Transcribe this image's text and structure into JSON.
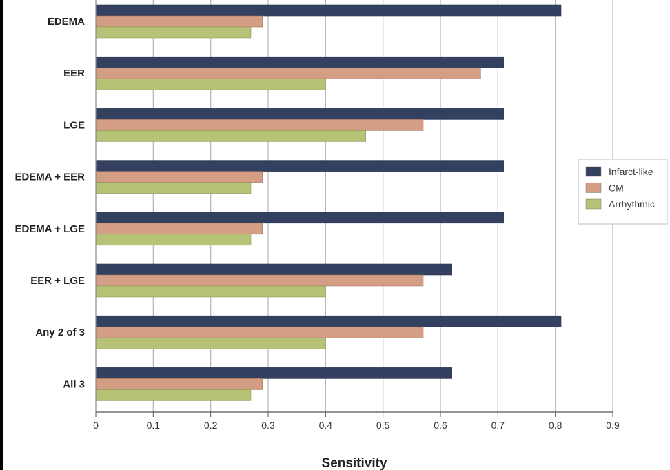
{
  "chart_data": {
    "type": "bar",
    "orientation": "horizontal",
    "title": "",
    "xlabel": "Sensitivity",
    "ylabel": "",
    "xlim": [
      0,
      0.9
    ],
    "xticks": [
      "0",
      "0.1",
      "0.2",
      "0.3",
      "0.4",
      "0.5",
      "0.6",
      "0.7",
      "0.8",
      "0.9"
    ],
    "grid": true,
    "legend_position": "right",
    "categories": [
      "EDEMA",
      "EER",
      "LGE",
      "EDEMA + EER",
      "EDEMA + LGE",
      "EER + LGE",
      "Any 2 of 3",
      "All 3"
    ],
    "series": [
      {
        "name": "Infarct-like",
        "color": "#33405f",
        "values": [
          0.81,
          0.71,
          0.71,
          0.71,
          0.71,
          0.62,
          0.81,
          0.62
        ]
      },
      {
        "name": "CM",
        "color": "#d49e85",
        "values": [
          0.29,
          0.67,
          0.57,
          0.29,
          0.29,
          0.57,
          0.57,
          0.29
        ]
      },
      {
        "name": "Arrhythmic",
        "color": "#b7c277",
        "values": [
          0.27,
          0.4,
          0.47,
          0.27,
          0.27,
          0.4,
          0.4,
          0.27
        ]
      }
    ]
  }
}
